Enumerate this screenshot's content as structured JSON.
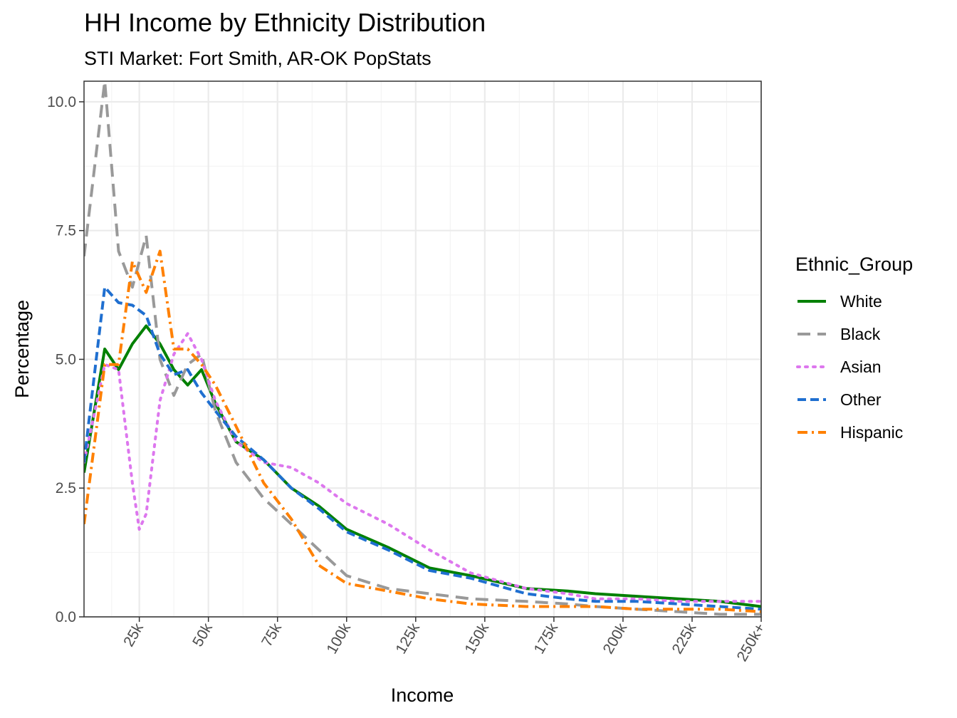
{
  "chart_data": {
    "type": "line",
    "title": "HH Income by Ethnicity Distribution",
    "subtitle": "STI Market: Fort Smith, AR-OK PopStats",
    "xlabel": "Income",
    "ylabel": "Percentage",
    "x_tick_labels": [
      "25k",
      "50k",
      "75k",
      "100k",
      "125k",
      "150k",
      "175k",
      "200k",
      "225k",
      "250k+"
    ],
    "x_tick_values": [
      20,
      45,
      70,
      95,
      120,
      145,
      170,
      195,
      220,
      245
    ],
    "y_tick_labels": [
      "0.0",
      "2.5",
      "5.0",
      "7.5",
      "10.0"
    ],
    "y_tick_values": [
      0,
      2.5,
      5,
      7.5,
      10
    ],
    "xlim": [
      0,
      245
    ],
    "ylim": [
      0,
      10.4
    ],
    "grid": true,
    "legend_title": "Ethnic_Group",
    "legend_position": "right",
    "series": [
      {
        "name": "White",
        "color": "#008000",
        "dash": "solid",
        "x": [
          0,
          7.5,
          12.5,
          17.5,
          22.5,
          27.5,
          32.5,
          37.5,
          42.5,
          47.5,
          55,
          65,
          75,
          85,
          95,
          110,
          125,
          140,
          160,
          175,
          185,
          200,
          215,
          230,
          245
        ],
        "y": [
          2.8,
          5.2,
          4.8,
          5.3,
          5.65,
          5.3,
          4.8,
          4.5,
          4.8,
          4.15,
          3.4,
          3.05,
          2.5,
          2.15,
          1.7,
          1.35,
          0.95,
          0.8,
          0.55,
          0.5,
          0.45,
          0.4,
          0.35,
          0.3,
          0.2
        ]
      },
      {
        "name": "Black",
        "color": "#999999",
        "dash": "long",
        "x": [
          0,
          7.5,
          12.5,
          17.5,
          22.5,
          27.5,
          32.5,
          37.5,
          42.5,
          47.5,
          55,
          65,
          75,
          85,
          95,
          110,
          125,
          140,
          160,
          175,
          185,
          200,
          215,
          230,
          245
        ],
        "y": [
          7.0,
          10.4,
          7.1,
          6.4,
          7.4,
          5.0,
          4.3,
          4.9,
          5.1,
          4.0,
          3.0,
          2.3,
          1.8,
          1.3,
          0.8,
          0.55,
          0.45,
          0.35,
          0.3,
          0.25,
          0.2,
          0.15,
          0.1,
          0.05,
          0.05
        ]
      },
      {
        "name": "Asian",
        "color": "#dd77ee",
        "dash": "dotted",
        "x": [
          0,
          7.5,
          12.5,
          17.5,
          20,
          22.5,
          27.5,
          32.5,
          37.5,
          42.5,
          47.5,
          55,
          65,
          75,
          85,
          95,
          110,
          125,
          140,
          160,
          175,
          185,
          200,
          215,
          230,
          245
        ],
        "y": [
          3.0,
          4.9,
          4.8,
          2.6,
          1.7,
          2.0,
          4.2,
          5.1,
          5.5,
          5.0,
          4.2,
          3.4,
          3.0,
          2.9,
          2.6,
          2.2,
          1.8,
          1.3,
          0.85,
          0.55,
          0.45,
          0.35,
          0.35,
          0.3,
          0.3,
          0.3
        ]
      },
      {
        "name": "Other",
        "color": "#1f6fd0",
        "dash": "dashed",
        "x": [
          0,
          7.5,
          12.5,
          17.5,
          22.5,
          27.5,
          32.5,
          37.5,
          42.5,
          47.5,
          55,
          65,
          75,
          85,
          95,
          110,
          125,
          140,
          160,
          175,
          185,
          200,
          215,
          230,
          245
        ],
        "y": [
          3.0,
          6.4,
          6.1,
          6.05,
          5.85,
          5.1,
          4.7,
          4.8,
          4.35,
          4.0,
          3.5,
          3.05,
          2.5,
          2.1,
          1.65,
          1.3,
          0.9,
          0.75,
          0.45,
          0.35,
          0.3,
          0.3,
          0.25,
          0.2,
          0.15
        ]
      },
      {
        "name": "Hispanic",
        "color": "#ff8000",
        "dash": "dashdot",
        "x": [
          0,
          7.5,
          12.5,
          17.5,
          22.5,
          27.5,
          32.5,
          37.5,
          42.5,
          47.5,
          55,
          65,
          75,
          85,
          95,
          110,
          125,
          140,
          160,
          175,
          185,
          200,
          215,
          230,
          245
        ],
        "y": [
          1.8,
          4.9,
          4.9,
          6.9,
          6.3,
          7.1,
          5.2,
          5.2,
          4.9,
          4.5,
          3.7,
          2.6,
          1.9,
          1.0,
          0.65,
          0.5,
          0.35,
          0.25,
          0.2,
          0.2,
          0.2,
          0.15,
          0.15,
          0.15,
          0.1
        ]
      }
    ]
  }
}
